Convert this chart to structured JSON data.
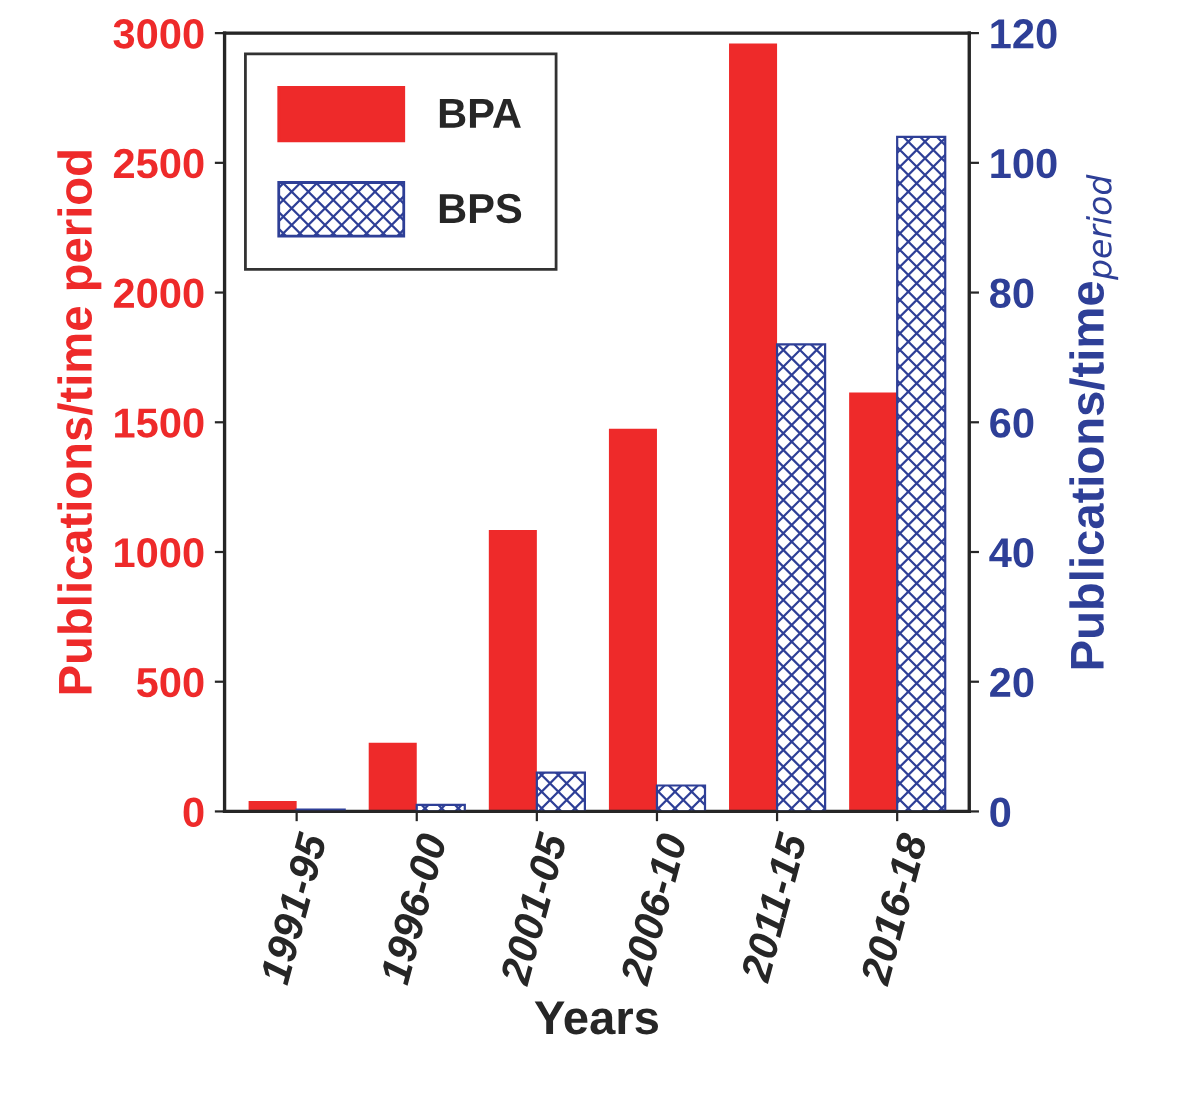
{
  "chart_data": {
    "type": "bar",
    "xlabel": "Years",
    "ylabel": "Publications/time period",
    "y2label": "Publications/time$_{period}$",
    "categories": [
      "1991-95",
      "1996-00",
      "2001-05",
      "2006-10",
      "2011-15",
      "2016-18"
    ],
    "series": [
      {
        "name": "BPA",
        "color": "#ee2a2a",
        "values": [
          40,
          265,
          1085,
          1475,
          2960,
          1615
        ]
      },
      {
        "name": "BPS",
        "color": "#2e3f97",
        "axis": "y2",
        "values": [
          0.3,
          1,
          6,
          4,
          72,
          104
        ]
      }
    ],
    "ylim": [
      0,
      3000
    ],
    "yticks": [
      0,
      500,
      1000,
      1500,
      2000,
      2500,
      3000
    ],
    "y2lim": [
      0,
      120
    ],
    "y2ticks": [
      0,
      20,
      40,
      60,
      80,
      100,
      120
    ],
    "legend": "top left",
    "grid": false
  }
}
